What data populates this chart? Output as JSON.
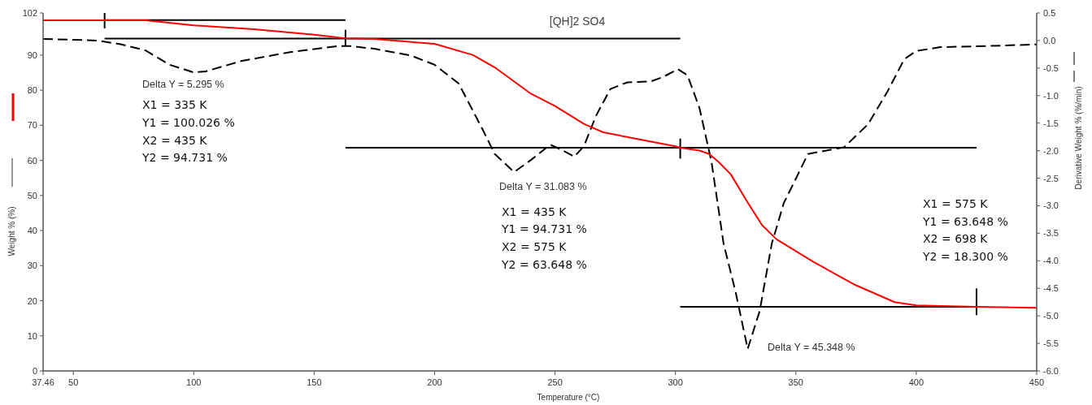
{
  "chart_data": {
    "type": "line",
    "title": "[QH]2 SO4",
    "xlabel": "Temperature (°C)",
    "ylabel": "Weight % (%)",
    "y2label": "Derivative Weight % (%/min)",
    "xlim": [
      37.46,
      450
    ],
    "xticks": [
      37.46,
      50,
      100,
      150,
      200,
      250,
      300,
      350,
      400,
      450
    ],
    "ylim": [
      0,
      102
    ],
    "yticks": [
      0,
      10,
      20,
      30,
      40,
      50,
      60,
      70,
      80,
      90,
      102
    ],
    "y2lim": [
      -6,
      0.5
    ],
    "y2ticks": [
      0.5,
      {
        "value": 0,
        "label": "0.0"
      },
      -0.5,
      {
        "value": -1,
        "label": "-1.0"
      },
      -1.5,
      {
        "value": -2,
        "label": "-2.0"
      },
      -2.5,
      {
        "value": -3,
        "label": "-3.0"
      },
      -3.5,
      {
        "value": -4,
        "label": "-4.0"
      },
      -4.5,
      {
        "value": -5,
        "label": "-5.0"
      },
      -5.5,
      {
        "value": -6,
        "label": "-6.0"
      }
    ],
    "series": [
      {
        "color": "#ff0000",
        "line_style": "solid",
        "x": [
          37.46,
          60,
          80,
          100,
          125,
          150,
          163,
          175,
          200,
          216,
          225,
          240,
          250,
          262,
          270,
          285,
          300,
          302,
          310,
          314,
          318,
          323,
          330,
          336,
          342,
          357,
          374,
          391,
          400,
          410,
          425,
          440,
          450
        ],
        "values": [
          99.9,
          99.9,
          99.9,
          98.5,
          97.4,
          95.8,
          94.8,
          94.6,
          93.2,
          90,
          86.5,
          79,
          75.5,
          70.4,
          68,
          66,
          64,
          63.6,
          62.8,
          61.8,
          59.5,
          56,
          48,
          41.5,
          37.5,
          31.2,
          24.7,
          19.6,
          18.7,
          18.5,
          18.3,
          18.1,
          18
        ]
      },
      {
        "axis": "y2",
        "color": "#000000",
        "line_style": "dashed",
        "x": [
          37.46,
          60,
          70,
          80,
          90,
          100,
          105,
          120,
          140,
          160,
          165,
          175,
          190,
          200,
          210,
          220,
          225,
          233,
          240,
          248,
          253,
          258,
          262,
          267,
          273,
          280,
          290,
          295,
          301,
          305,
          310,
          315,
          320,
          325,
          330,
          335,
          340,
          345,
          350,
          355,
          360,
          370,
          380,
          388,
          395,
          400,
          410,
          430,
          450
        ],
        "values": [
          0.03,
          0,
          -0.07,
          -0.18,
          -0.44,
          -0.58,
          -0.56,
          -0.37,
          -0.21,
          -0.1,
          -0.1,
          -0.15,
          -0.27,
          -0.44,
          -0.78,
          -1.62,
          -2.06,
          -2.39,
          -2.17,
          -1.89,
          -1.99,
          -2.11,
          -1.92,
          -1.37,
          -0.88,
          -0.76,
          -0.74,
          -0.66,
          -0.52,
          -0.63,
          -1.23,
          -2.21,
          -3.69,
          -4.57,
          -5.6,
          -4.91,
          -3.69,
          -2.95,
          -2.51,
          -2.06,
          -2.02,
          -1.94,
          -1.52,
          -0.93,
          -0.34,
          -0.19,
          -0.12,
          -0.1,
          -0.07
        ]
      },
      {
        "color": "#000000",
        "line_style": "solid",
        "x": [
          63,
          163
        ],
        "values": [
          100,
          100
        ]
      },
      {
        "color": "#000000",
        "line_style": "solid",
        "x": [
          63,
          302
        ],
        "values": [
          94.7,
          94.7
        ]
      },
      {
        "color": "#000000",
        "line_style": "solid",
        "x": [
          163,
          425
        ],
        "values": [
          63.6,
          63.6
        ]
      },
      {
        "color": "#000000",
        "line_style": "solid",
        "x": [
          302,
          425
        ],
        "values": [
          18.3,
          18.3
        ]
      },
      {
        "color": "#000000",
        "line_style": "solid",
        "x": [
          63,
          63
        ],
        "values": [
          97.6,
          102
        ]
      },
      {
        "color": "#000000",
        "line_style": "solid",
        "x": [
          163,
          163
        ],
        "values": [
          92.5,
          97.2
        ]
      },
      {
        "color": "#000000",
        "line_style": "solid",
        "x": [
          302,
          302
        ],
        "values": [
          60.5,
          66.2
        ]
      },
      {
        "color": "#000000",
        "line_style": "solid",
        "x": [
          425,
          425
        ],
        "values": [
          15.9,
          23.5
        ]
      }
    ],
    "annotations": [
      "Delta Y = 5.295 %",
      "X1 = 335 K",
      "Y1 = 100.026 %",
      "X2 = 435 K",
      "Y2 = 94.731 %",
      "Delta Y = 31.083 %",
      "X1 = 435 K",
      "Y1 = 94.731 %",
      "X2 = 575 K",
      "Y2 = 63.648 %",
      "X1 = 575 K",
      "Y1 = 63.648 %",
      "X2 = 698 K",
      "Y2 = 18.300 %",
      "Delta Y = 45.348 %"
    ]
  }
}
